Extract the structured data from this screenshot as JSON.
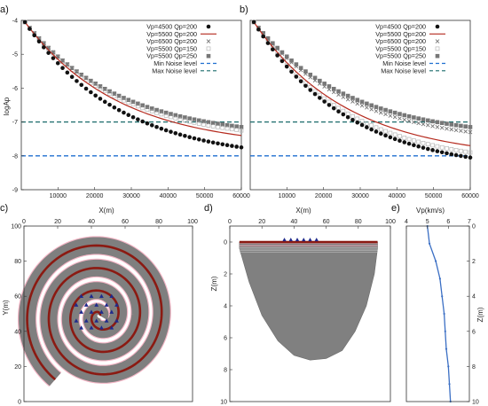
{
  "panels": [
    {
      "id": "a",
      "label": "a)"
    },
    {
      "id": "b",
      "label": "b)"
    },
    {
      "id": "c",
      "label": "c)"
    },
    {
      "id": "d",
      "label": "d)"
    },
    {
      "id": "e",
      "label": "e)"
    }
  ],
  "colors": {
    "black_series": "#111111",
    "red_series": "#b52a1e",
    "gray_series": "#777777",
    "min_noise": "#1f6fd0",
    "max_noise": "#1a6b6b",
    "spiral_body": "#7f7f7f",
    "spiral_line": "#8b1a12",
    "station": "#1f2a8c",
    "velocity": "#3b6fc4"
  },
  "chart_data": [
    {
      "panel": "a",
      "type": "line",
      "xlabel": "",
      "ylabel": "logAp",
      "xlim": [
        0,
        60000
      ],
      "ylim": [
        -9,
        -4
      ],
      "xticks": [
        "10000",
        "20000",
        "30000",
        "40000",
        "50000",
        "60000"
      ],
      "yticks": [
        "-4",
        "-5",
        "-6",
        "-7",
        "-8",
        "-9"
      ],
      "legend_position": "top-right",
      "series": [
        {
          "name": "Vp=4500 Qp=200",
          "style": "filled-circle",
          "x": [
            1000,
            60000
          ],
          "y": [
            -4.05,
            -7.75
          ],
          "k": 2.3
        },
        {
          "name": "Vp=5500 Qp=200",
          "style": "line",
          "x": [
            1000,
            60000
          ],
          "y": [
            -4.05,
            -7.4
          ],
          "k": 2.3
        },
        {
          "name": "Vp=6500 Qp=200",
          "style": "cross",
          "x": [
            1000,
            60000
          ],
          "y": [
            -4.05,
            -7.15
          ],
          "k": 2.3
        },
        {
          "name": "Vp=5500 Qp=150",
          "style": "open-square",
          "x": [
            1000,
            60000
          ],
          "y": [
            -4.05,
            -7.25
          ],
          "k": 2.3
        },
        {
          "name": "Vp=5500 Qp=250",
          "style": "filled-square",
          "x": [
            1000,
            60000
          ],
          "y": [
            -4.05,
            -7.15
          ],
          "k": 2.3
        }
      ],
      "hlines": [
        {
          "name": "Min Noise level",
          "y": -8.0
        },
        {
          "name": "Max Noise level",
          "y": -7.0
        }
      ]
    },
    {
      "panel": "b",
      "type": "line",
      "xlabel": "",
      "ylabel": "",
      "xlim": [
        0,
        60000
      ],
      "ylim": [
        -9,
        -4
      ],
      "xticks": [
        "10000",
        "20000",
        "30000",
        "40000",
        "50000",
        "60000"
      ],
      "yticks": [],
      "legend_position": "top-right",
      "series": [
        {
          "name": "Vp=4500 Qp=200",
          "style": "filled-circle",
          "x": [
            1000,
            60000
          ],
          "y": [
            -4.05,
            -8.05
          ],
          "k": 2.3
        },
        {
          "name": "Vp=5500 Qp=200",
          "style": "line",
          "x": [
            1000,
            60000
          ],
          "y": [
            -4.05,
            -7.7
          ],
          "k": 2.3
        },
        {
          "name": "Vp=6500 Qp=200",
          "style": "cross",
          "x": [
            1000,
            60000
          ],
          "y": [
            -4.05,
            -7.3
          ],
          "k": 2.3
        },
        {
          "name": "Vp=5500 Qp=150",
          "style": "open-square",
          "x": [
            1000,
            60000
          ],
          "y": [
            -4.05,
            -7.9
          ],
          "k": 2.3
        },
        {
          "name": "Vp=5500 Qp=250",
          "style": "filled-square",
          "x": [
            1000,
            60000
          ],
          "y": [
            -4.05,
            -7.15
          ],
          "k": 2.3
        }
      ],
      "hlines": [
        {
          "name": "Min Noise level",
          "y": -8.0
        },
        {
          "name": "Max Noise level",
          "y": -7.0
        }
      ]
    },
    {
      "panel": "c",
      "type": "scatter",
      "xlabel": "X(m)",
      "ylabel": "Y(m)",
      "xlim": [
        0,
        100
      ],
      "ylim": [
        0,
        100
      ],
      "xticks": [
        "0",
        "20",
        "40",
        "60",
        "80",
        "100"
      ],
      "yticks": [
        "0",
        "20",
        "40",
        "60",
        "80",
        "100"
      ],
      "spiral": {
        "center": [
          45,
          49
        ],
        "turns": 3.5,
        "r_end": 45,
        "band_width": 10
      },
      "stations": [
        [
          34,
          60
        ],
        [
          40,
          60
        ],
        [
          46,
          60
        ],
        [
          52,
          60
        ],
        [
          31,
          55
        ],
        [
          37,
          55
        ],
        [
          43,
          55
        ],
        [
          49,
          55
        ],
        [
          55,
          55
        ],
        [
          34,
          51
        ],
        [
          40,
          51
        ],
        [
          46,
          51
        ],
        [
          52,
          51
        ],
        [
          31,
          46
        ],
        [
          37,
          46
        ],
        [
          43,
          46
        ],
        [
          49,
          46
        ],
        [
          55,
          46
        ],
        [
          34,
          42
        ],
        [
          40,
          42
        ],
        [
          46,
          42
        ],
        [
          52,
          42
        ]
      ]
    },
    {
      "panel": "d",
      "type": "area",
      "xlabel": "X(m)",
      "ylabel": "Z(m)",
      "xlim": [
        0,
        100
      ],
      "ylim": [
        10,
        -1
      ],
      "xticks": [
        "0",
        "20",
        "40",
        "60",
        "80",
        "100"
      ],
      "yticks": [
        "0",
        "2",
        "4",
        "6",
        "8",
        "10"
      ],
      "surface_z": 0,
      "surface_x": [
        6,
        92
      ],
      "stations_x": [
        34,
        38,
        42,
        46,
        50,
        54
      ],
      "bowl": {
        "x": [
          6,
          12,
          20,
          30,
          40,
          50,
          60,
          70,
          78,
          85,
          90,
          92
        ],
        "z": [
          0.4,
          2.5,
          4.6,
          6.2,
          7.1,
          7.4,
          7.3,
          6.8,
          5.6,
          4.0,
          2.0,
          0.4
        ]
      }
    },
    {
      "panel": "e",
      "type": "line",
      "xlabel": "Vp(km/s)",
      "ylabel": "Z(m)",
      "xlim": [
        4,
        7
      ],
      "ylim": [
        10,
        0
      ],
      "xticks": [
        "4",
        "5",
        "6",
        "7"
      ],
      "yticks": [
        "0",
        "2",
        "4",
        "6",
        "8",
        "10"
      ],
      "profile": {
        "vp": [
          5.0,
          5.1,
          5.4,
          5.6,
          5.7,
          5.8,
          5.85,
          5.9,
          6.0,
          6.05,
          6.1
        ],
        "z": [
          0,
          1,
          2,
          3,
          4,
          5,
          6,
          7,
          8,
          9,
          10
        ]
      }
    }
  ]
}
